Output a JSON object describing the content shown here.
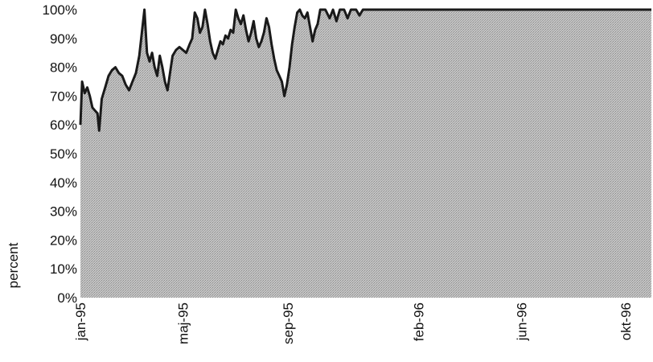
{
  "chart_data": {
    "type": "area",
    "title": "",
    "xlabel": "",
    "ylabel": "percent",
    "ylim": [
      0,
      100
    ],
    "xlim": [
      "1995-01-01",
      "1996-10-31"
    ],
    "grid": false,
    "legend": "none",
    "x_tick_labels": [
      {
        "label": "jan-95",
        "date": "1995-01-01"
      },
      {
        "label": "maj-95",
        "date": "1995-05-01"
      },
      {
        "label": "sep-95",
        "date": "1995-09-01"
      },
      {
        "label": "feb-96",
        "date": "1996-02-01"
      },
      {
        "label": "jun-96",
        "date": "1996-06-01"
      },
      {
        "label": "okt-96",
        "date": "1996-10-01"
      }
    ],
    "y_tick_labels": [
      "0%",
      "10%",
      "20%",
      "30%",
      "40%",
      "50%",
      "60%",
      "70%",
      "80%",
      "90%",
      "100%"
    ],
    "y_ticks": [
      0,
      10,
      20,
      30,
      40,
      50,
      60,
      70,
      80,
      90,
      100
    ],
    "series": [
      {
        "colors": {
          "fill": "#b8b8b8",
          "line": "#1a1a1a"
        },
        "points": [
          [
            "1995-01-01",
            60
          ],
          [
            "1995-01-03",
            75
          ],
          [
            "1995-01-06",
            71
          ],
          [
            "1995-01-09",
            73
          ],
          [
            "1995-01-12",
            70
          ],
          [
            "1995-01-15",
            66
          ],
          [
            "1995-01-18",
            65
          ],
          [
            "1995-01-21",
            64
          ],
          [
            "1995-01-23",
            58
          ],
          [
            "1995-01-26",
            69
          ],
          [
            "1995-01-30",
            73
          ],
          [
            "1995-02-03",
            77
          ],
          [
            "1995-02-07",
            79
          ],
          [
            "1995-02-11",
            80
          ],
          [
            "1995-02-15",
            78
          ],
          [
            "1995-02-19",
            77
          ],
          [
            "1995-02-23",
            74
          ],
          [
            "1995-02-27",
            72
          ],
          [
            "1995-03-03",
            75
          ],
          [
            "1995-03-07",
            78
          ],
          [
            "1995-03-11",
            84
          ],
          [
            "1995-03-14",
            92
          ],
          [
            "1995-03-17",
            100
          ],
          [
            "1995-03-20",
            85
          ],
          [
            "1995-03-23",
            82
          ],
          [
            "1995-03-26",
            85
          ],
          [
            "1995-03-29",
            80
          ],
          [
            "1995-04-01",
            77
          ],
          [
            "1995-04-04",
            84
          ],
          [
            "1995-04-07",
            80
          ],
          [
            "1995-04-10",
            75
          ],
          [
            "1995-04-13",
            72
          ],
          [
            "1995-04-16",
            78
          ],
          [
            "1995-04-19",
            84
          ],
          [
            "1995-04-23",
            86
          ],
          [
            "1995-04-27",
            87
          ],
          [
            "1995-05-01",
            86
          ],
          [
            "1995-05-05",
            85
          ],
          [
            "1995-05-09",
            88
          ],
          [
            "1995-05-12",
            90
          ],
          [
            "1995-05-15",
            99
          ],
          [
            "1995-05-18",
            97
          ],
          [
            "1995-05-21",
            92
          ],
          [
            "1995-05-24",
            94
          ],
          [
            "1995-05-27",
            100
          ],
          [
            "1995-05-30",
            95
          ],
          [
            "1995-06-02",
            89
          ],
          [
            "1995-06-05",
            85
          ],
          [
            "1995-06-08",
            83
          ],
          [
            "1995-06-11",
            86
          ],
          [
            "1995-06-14",
            89
          ],
          [
            "1995-06-17",
            88
          ],
          [
            "1995-06-20",
            91
          ],
          [
            "1995-06-23",
            90
          ],
          [
            "1995-06-26",
            93
          ],
          [
            "1995-06-29",
            92
          ],
          [
            "1995-07-02",
            100
          ],
          [
            "1995-07-05",
            97
          ],
          [
            "1995-07-08",
            95
          ],
          [
            "1995-07-11",
            98
          ],
          [
            "1995-07-14",
            93
          ],
          [
            "1995-07-17",
            89
          ],
          [
            "1995-07-20",
            92
          ],
          [
            "1995-07-23",
            96
          ],
          [
            "1995-07-26",
            90
          ],
          [
            "1995-07-29",
            87
          ],
          [
            "1995-08-01",
            89
          ],
          [
            "1995-08-04",
            92
          ],
          [
            "1995-08-07",
            97
          ],
          [
            "1995-08-10",
            94
          ],
          [
            "1995-08-13",
            88
          ],
          [
            "1995-08-16",
            83
          ],
          [
            "1995-08-19",
            79
          ],
          [
            "1995-08-22",
            77
          ],
          [
            "1995-08-25",
            75
          ],
          [
            "1995-08-28",
            70
          ],
          [
            "1995-08-31",
            74
          ],
          [
            "1995-09-03",
            80
          ],
          [
            "1995-09-06",
            88
          ],
          [
            "1995-09-09",
            94
          ],
          [
            "1995-09-12",
            99
          ],
          [
            "1995-09-15",
            100
          ],
          [
            "1995-09-18",
            98
          ],
          [
            "1995-09-21",
            97
          ],
          [
            "1995-09-24",
            99
          ],
          [
            "1995-09-27",
            94
          ],
          [
            "1995-09-30",
            89
          ],
          [
            "1995-10-03",
            93
          ],
          [
            "1995-10-06",
            95
          ],
          [
            "1995-10-09",
            100
          ],
          [
            "1995-10-12",
            100
          ],
          [
            "1995-10-15",
            100
          ],
          [
            "1995-10-20",
            97
          ],
          [
            "1995-10-24",
            100
          ],
          [
            "1995-10-28",
            96
          ],
          [
            "1995-11-01",
            100
          ],
          [
            "1995-11-06",
            100
          ],
          [
            "1995-11-10",
            97
          ],
          [
            "1995-11-14",
            100
          ],
          [
            "1995-11-20",
            100
          ],
          [
            "1995-11-24",
            98
          ],
          [
            "1995-11-28",
            100
          ],
          [
            "1996-10-31",
            100
          ]
        ]
      }
    ]
  }
}
